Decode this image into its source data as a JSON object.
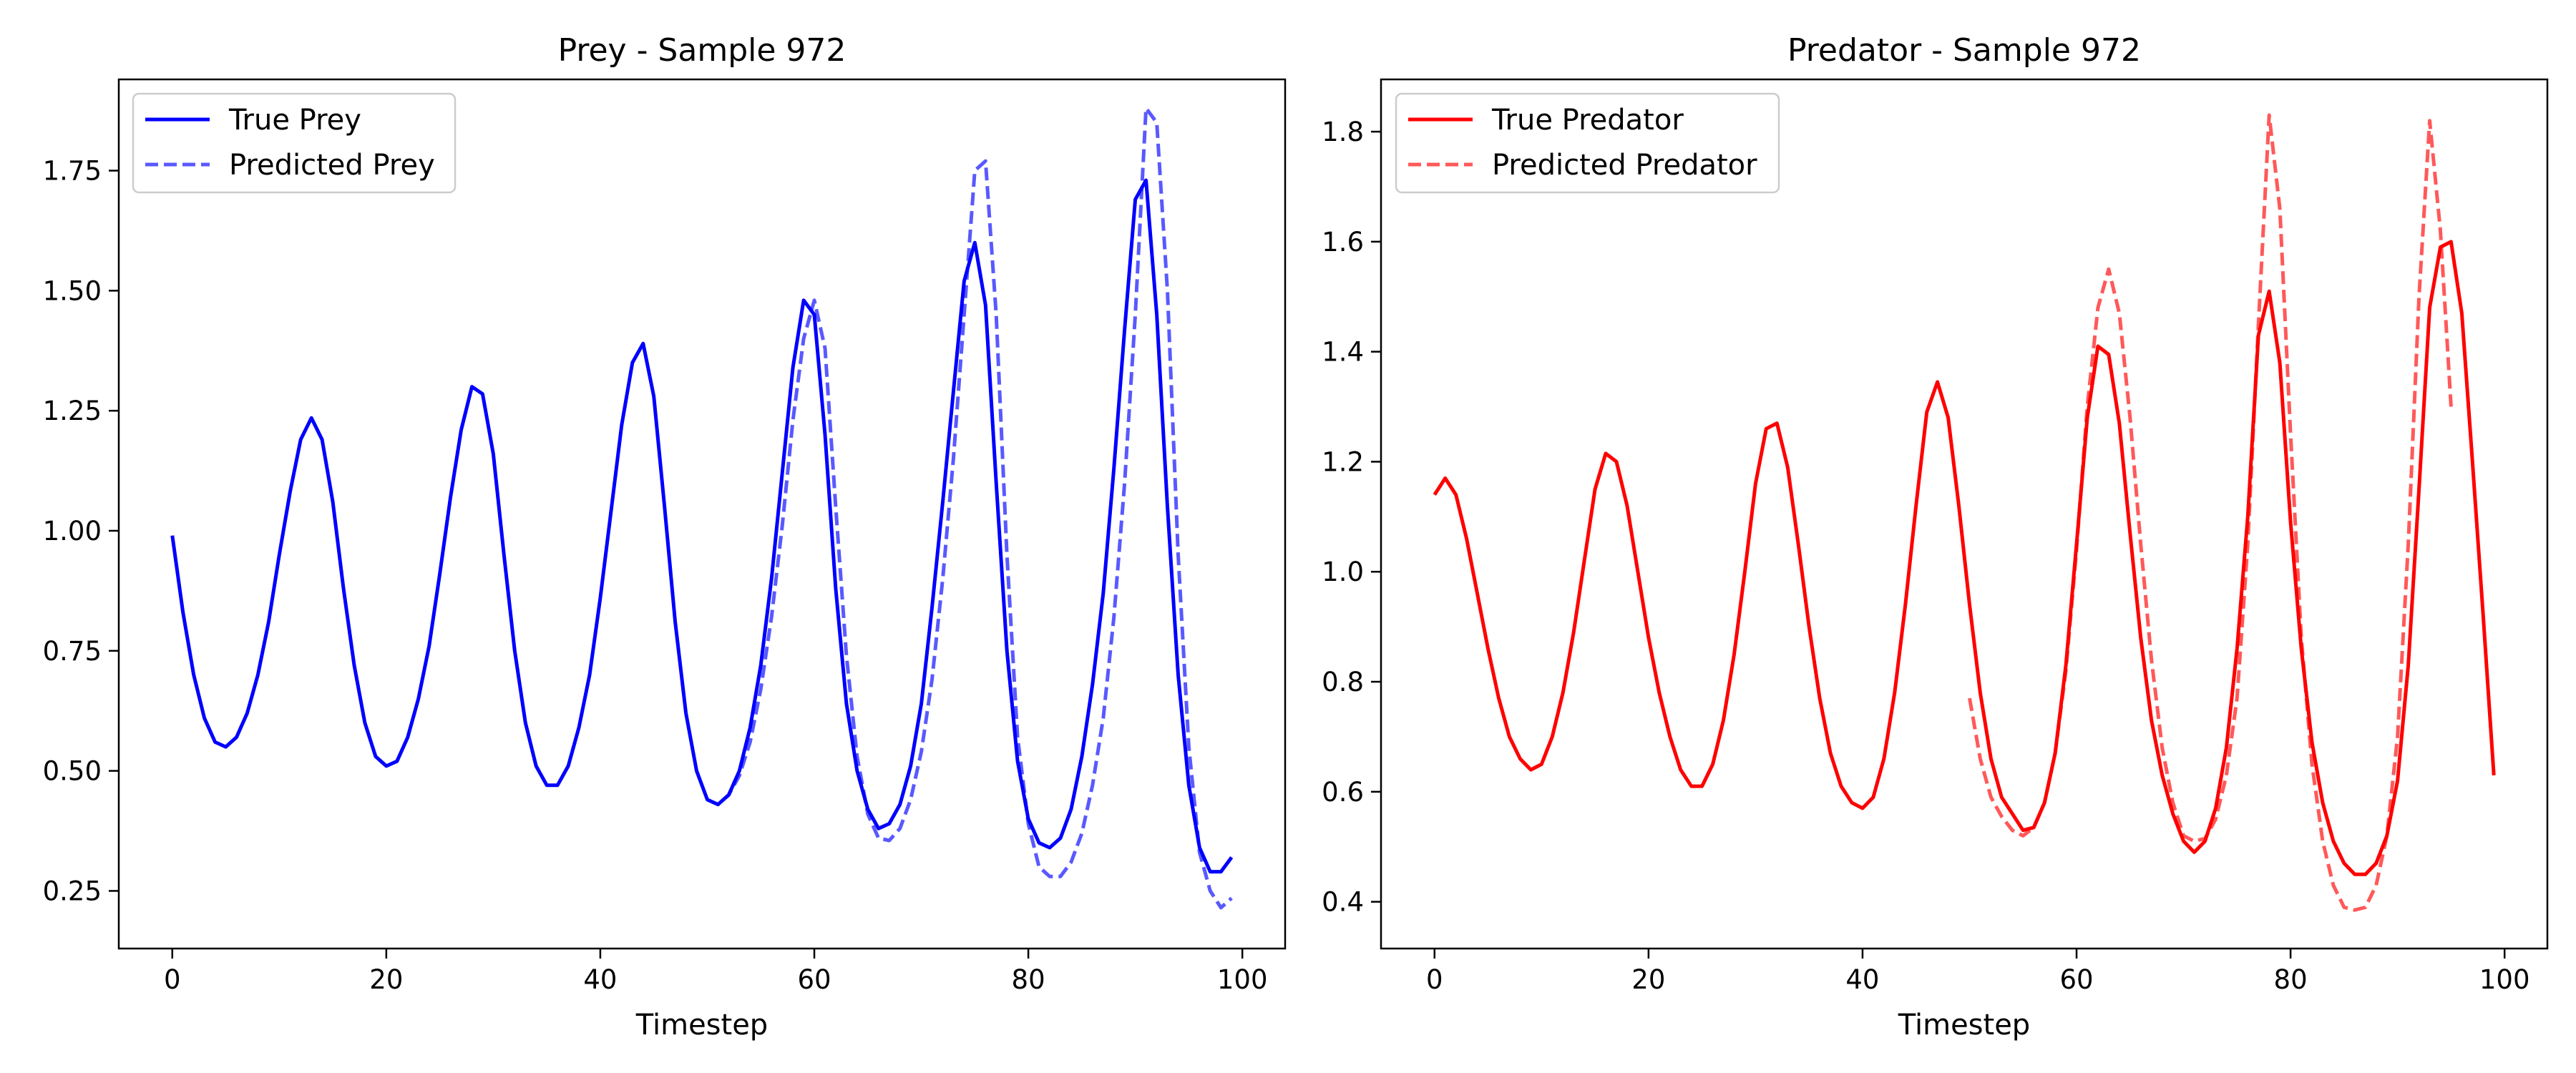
{
  "chart_data": [
    {
      "type": "line",
      "title": "Prey - Sample 972",
      "xlabel": "Timestep",
      "ylabel": "",
      "xlim": [
        -5,
        104
      ],
      "ylim": [
        0.13,
        1.94
      ],
      "x_ticks": [
        0,
        20,
        40,
        60,
        80,
        100
      ],
      "y_ticks": [
        0.25,
        0.5,
        0.75,
        1.0,
        1.25,
        1.5,
        1.75
      ],
      "y_tick_labels": [
        "0.25",
        "0.50",
        "0.75",
        "1.00",
        "1.25",
        "1.50",
        "1.75"
      ],
      "grid": false,
      "legend_position": "top-left",
      "series": [
        {
          "name": "True Prey",
          "style": "solid",
          "color": "#0000ff",
          "opacity": 1.0,
          "x_start": 0,
          "values": [
            0.99,
            0.83,
            0.7,
            0.61,
            0.56,
            0.55,
            0.57,
            0.62,
            0.7,
            0.81,
            0.95,
            1.08,
            1.19,
            1.235,
            1.19,
            1.06,
            0.88,
            0.72,
            0.6,
            0.53,
            0.51,
            0.52,
            0.57,
            0.65,
            0.76,
            0.91,
            1.07,
            1.21,
            1.3,
            1.285,
            1.16,
            0.95,
            0.75,
            0.6,
            0.51,
            0.47,
            0.47,
            0.51,
            0.59,
            0.7,
            0.86,
            1.04,
            1.22,
            1.35,
            1.39,
            1.28,
            1.05,
            0.81,
            0.62,
            0.5,
            0.44,
            0.43,
            0.45,
            0.5,
            0.59,
            0.72,
            0.9,
            1.12,
            1.34,
            1.48,
            1.45,
            1.2,
            0.88,
            0.64,
            0.5,
            0.42,
            0.38,
            0.39,
            0.43,
            0.51,
            0.64,
            0.84,
            1.06,
            1.29,
            1.52,
            1.6,
            1.47,
            1.1,
            0.75,
            0.52,
            0.4,
            0.35,
            0.34,
            0.36,
            0.42,
            0.53,
            0.68,
            0.87,
            1.13,
            1.42,
            1.69,
            1.73,
            1.45,
            1.05,
            0.7,
            0.47,
            0.34,
            0.29,
            0.29,
            0.32
          ]
        },
        {
          "name": "Predicted Prey",
          "style": "dashed",
          "color": "#0000ff",
          "opacity": 0.65,
          "x_start": 50,
          "values": [
            0.44,
            0.43,
            0.45,
            0.49,
            0.56,
            0.67,
            0.82,
            1.01,
            1.23,
            1.4,
            1.48,
            1.38,
            1.05,
            0.74,
            0.53,
            0.41,
            0.36,
            0.355,
            0.38,
            0.44,
            0.54,
            0.69,
            0.9,
            1.15,
            1.45,
            1.75,
            1.77,
            1.45,
            0.95,
            0.57,
            0.39,
            0.3,
            0.28,
            0.28,
            0.31,
            0.37,
            0.47,
            0.61,
            0.82,
            1.1,
            1.45,
            1.88,
            1.85,
            1.5,
            0.95,
            0.55,
            0.33,
            0.25,
            0.215,
            0.235
          ]
        }
      ]
    },
    {
      "type": "line",
      "title": "Predator - Sample 972",
      "xlabel": "Timestep",
      "ylabel": "",
      "xlim": [
        -5,
        104
      ],
      "ylim": [
        0.315,
        1.895
      ],
      "x_ticks": [
        0,
        20,
        40,
        60,
        80,
        100
      ],
      "y_ticks": [
        0.4,
        0.6,
        0.8,
        1.0,
        1.2,
        1.4,
        1.6,
        1.8
      ],
      "y_tick_labels": [
        "0.4",
        "0.6",
        "0.8",
        "1.0",
        "1.2",
        "1.4",
        "1.6",
        "1.8"
      ],
      "grid": false,
      "legend_position": "top-left",
      "series": [
        {
          "name": "True Predator",
          "style": "solid",
          "color": "#ff0000",
          "opacity": 1.0,
          "x_start": 0,
          "values": [
            1.14,
            1.17,
            1.14,
            1.06,
            0.96,
            0.86,
            0.77,
            0.7,
            0.66,
            0.64,
            0.65,
            0.7,
            0.78,
            0.89,
            1.02,
            1.15,
            1.215,
            1.2,
            1.12,
            1.0,
            0.88,
            0.78,
            0.7,
            0.64,
            0.61,
            0.61,
            0.65,
            0.73,
            0.85,
            1.0,
            1.16,
            1.26,
            1.27,
            1.19,
            1.05,
            0.9,
            0.77,
            0.67,
            0.61,
            0.58,
            0.57,
            0.59,
            0.66,
            0.78,
            0.94,
            1.12,
            1.29,
            1.345,
            1.28,
            1.12,
            0.94,
            0.78,
            0.66,
            0.59,
            0.56,
            0.53,
            0.535,
            0.58,
            0.67,
            0.83,
            1.05,
            1.28,
            1.41,
            1.395,
            1.27,
            1.07,
            0.88,
            0.73,
            0.63,
            0.56,
            0.51,
            0.49,
            0.51,
            0.57,
            0.68,
            0.86,
            1.1,
            1.43,
            1.51,
            1.38,
            1.09,
            0.86,
            0.69,
            0.58,
            0.51,
            0.47,
            0.45,
            0.45,
            0.47,
            0.52,
            0.62,
            0.83,
            1.15,
            1.48,
            1.59,
            1.6,
            1.47,
            1.2,
            0.92,
            0.63
          ]
        },
        {
          "name": "Predicted Predator",
          "style": "dashed",
          "color": "#ff0000",
          "opacity": 0.65,
          "x_start": 50,
          "values": [
            0.77,
            0.66,
            0.59,
            0.555,
            0.53,
            0.52,
            0.535,
            0.58,
            0.67,
            0.82,
            1.04,
            1.3,
            1.48,
            1.55,
            1.47,
            1.28,
            1.05,
            0.84,
            0.68,
            0.58,
            0.52,
            0.51,
            0.515,
            0.55,
            0.63,
            0.77,
            1.05,
            1.45,
            1.83,
            1.66,
            1.25,
            0.88,
            0.65,
            0.51,
            0.43,
            0.39,
            0.385,
            0.39,
            0.43,
            0.52,
            0.7,
            1.05,
            1.5,
            1.82,
            1.62,
            1.3
          ]
        }
      ]
    }
  ]
}
